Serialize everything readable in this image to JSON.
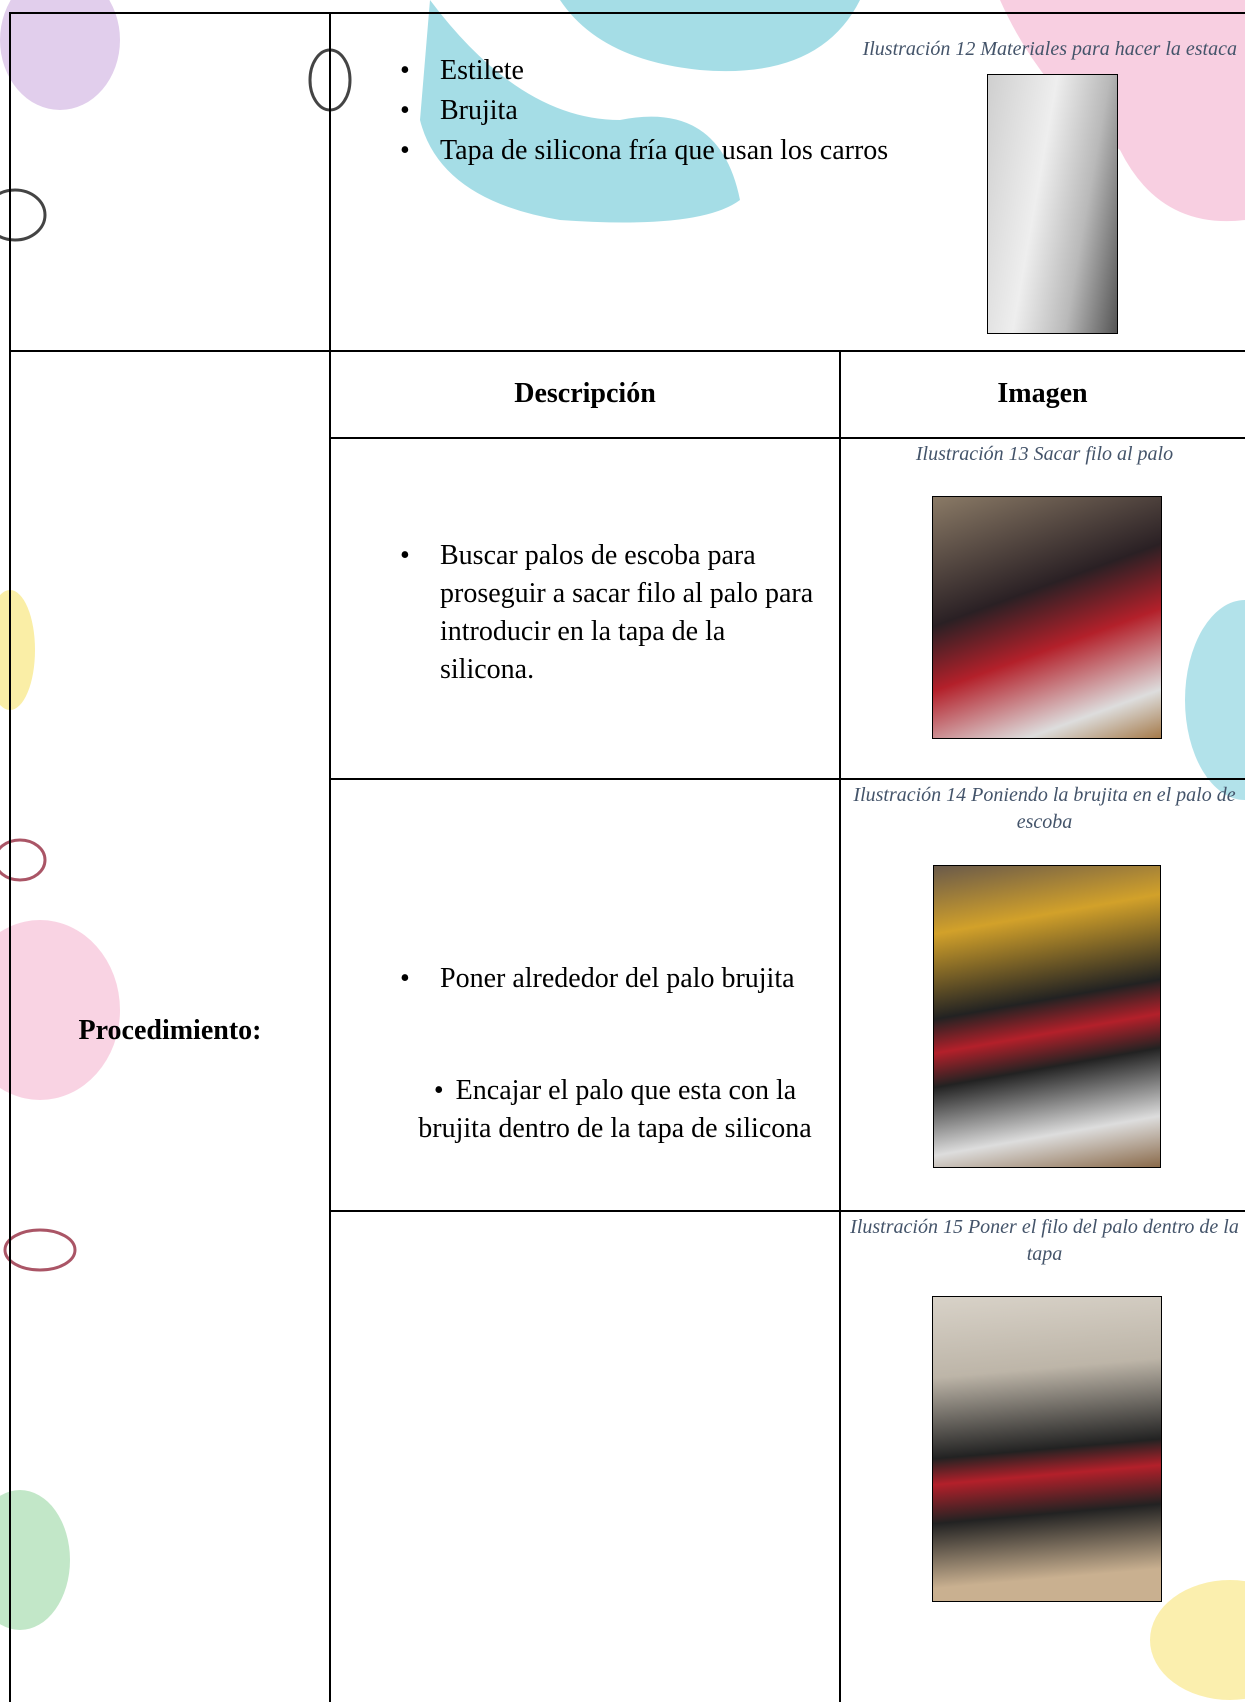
{
  "materials": {
    "items": [
      "Estilete",
      "Brujita",
      "Tapa de silicona fría que usan los carros"
    ],
    "caption": "Ilustración 12 Materiales para hacer la estaca"
  },
  "procedure": {
    "label": "Procedimiento:",
    "header": {
      "description": "Descripción",
      "image": "Imagen"
    },
    "rows": [
      {
        "description": "Buscar palos de escoba para proseguir a sacar filo al palo para introducir en la tapa de la silicona.",
        "caption": "Ilustración 13 Sacar filo al palo"
      },
      {
        "description": "Poner alrededor del palo brujita",
        "caption": "Ilustración 14 Poniendo la brujita en el palo de escoba"
      },
      {
        "description": "Encajar el palo que esta con la brujita dentro de la tapa de silicona",
        "caption": "Ilustración 15 Poner el filo del palo dentro de la tapa"
      }
    ]
  }
}
